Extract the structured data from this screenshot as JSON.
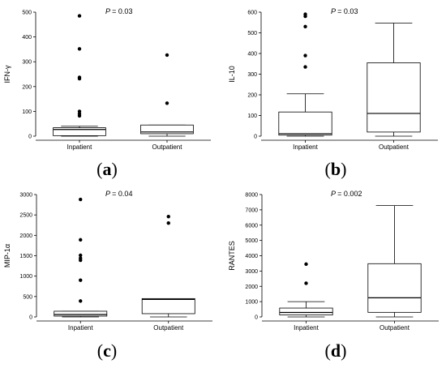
{
  "chart_data": [
    {
      "type": "box",
      "ylabel": "IFN-γ",
      "p_label": "P",
      "p_value": "= 0.03",
      "panel_label": "a",
      "ylim": [
        0,
        500
      ],
      "yticks": [
        0,
        100,
        200,
        300,
        400,
        500
      ],
      "categories": [
        "Inpatient",
        "Outpatient"
      ],
      "boxes": [
        {
          "category": "Inpatient",
          "whisker_low": 0,
          "q1": 2,
          "median": 27,
          "q3": 34,
          "whisker_high": 40,
          "outliers": [
            485,
            352,
            237,
            232,
            100,
            90,
            82
          ]
        },
        {
          "category": "Outpatient",
          "whisker_low": 0,
          "q1": 10,
          "median": 17,
          "q3": 45,
          "whisker_high": 45,
          "outliers": [
            327,
            133
          ]
        }
      ]
    },
    {
      "type": "box",
      "ylabel": "IL-10",
      "p_label": "P",
      "p_value": "= 0.03",
      "panel_label": "b",
      "ylim": [
        0,
        600
      ],
      "yticks": [
        0,
        100,
        200,
        300,
        400,
        500,
        600
      ],
      "categories": [
        "Inpatient",
        "Outpatient"
      ],
      "boxes": [
        {
          "category": "Inpatient",
          "whisker_low": 0,
          "q1": 5,
          "median": 12,
          "q3": 117,
          "whisker_high": 205,
          "outliers": [
            590,
            580,
            530,
            390,
            335
          ]
        },
        {
          "category": "Outpatient",
          "whisker_low": 0,
          "q1": 20,
          "median": 110,
          "q3": 355,
          "whisker_high": 547,
          "outliers": []
        }
      ]
    },
    {
      "type": "box",
      "ylabel": "MIP-1α",
      "p_label": "P",
      "p_value": "= 0.04",
      "panel_label": "c",
      "ylim": [
        0,
        3000
      ],
      "yticks": [
        0,
        500,
        1000,
        1500,
        2000,
        2500,
        3000
      ],
      "categories": [
        "Inpatient",
        "Outpatient"
      ],
      "boxes": [
        {
          "category": "Inpatient",
          "whisker_low": 0,
          "q1": 20,
          "median": 60,
          "q3": 140,
          "whisker_high": 140,
          "outliers": [
            2880,
            1890,
            1510,
            1440,
            1390,
            900,
            390
          ]
        },
        {
          "category": "Outpatient",
          "whisker_low": 0,
          "q1": 80,
          "median": 430,
          "q3": 450,
          "whisker_high": 450,
          "outliers": [
            2460,
            2300
          ]
        }
      ]
    },
    {
      "type": "box",
      "ylabel": "RANTES",
      "p_label": "P",
      "p_value": "= 0.002",
      "panel_label": "d",
      "ylim": [
        0,
        8000
      ],
      "yticks": [
        0,
        1000,
        2000,
        3000,
        4000,
        5000,
        6000,
        7000,
        8000
      ],
      "categories": [
        "Inpatient",
        "Outpatient"
      ],
      "boxes": [
        {
          "category": "Inpatient",
          "whisker_low": 0,
          "q1": 130,
          "median": 290,
          "q3": 580,
          "whisker_high": 1000,
          "outliers": [
            3450,
            2200
          ]
        },
        {
          "category": "Outpatient",
          "whisker_low": 0,
          "q1": 300,
          "median": 1250,
          "q3": 3480,
          "whisker_high": 7280,
          "outliers": []
        }
      ]
    }
  ]
}
